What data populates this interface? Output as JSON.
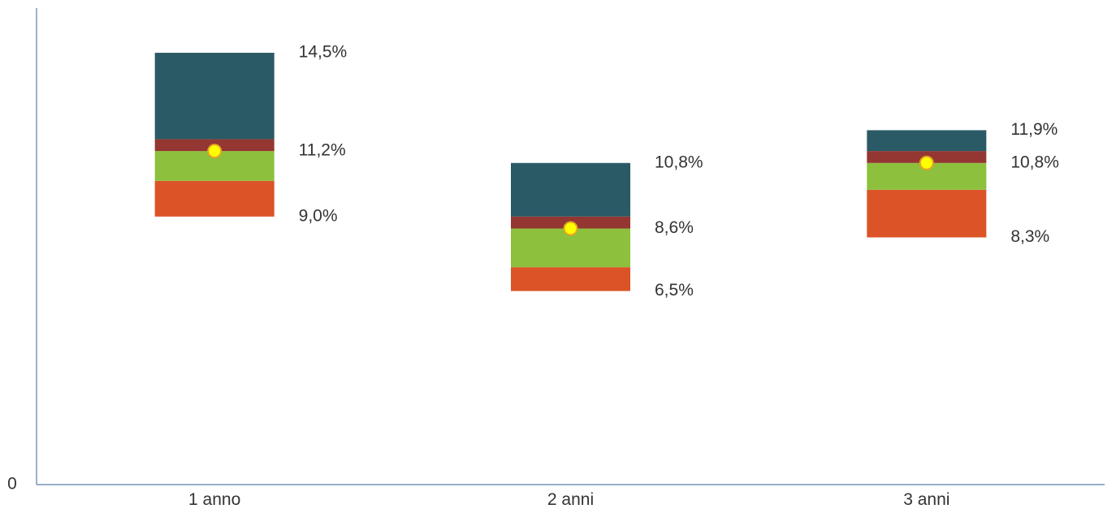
{
  "chart_data": {
    "type": "bar",
    "categories": [
      "1 anno",
      "2 anni",
      "3 anni"
    ],
    "ylim": [
      0,
      0.16
    ],
    "y_tick_labels": [
      "0"
    ],
    "series": [
      {
        "values": [
          0.09,
          0.065,
          0.083
        ],
        "color": "#db5326"
      },
      {
        "values": [
          0.102,
          0.073,
          0.099
        ],
        "color": "#8dc03d"
      },
      {
        "values": [
          0.112,
          0.086,
          0.108
        ],
        "color": "#943631"
      },
      {
        "values": [
          0.145,
          0.108,
          0.119
        ],
        "color": "#2a5a66"
      }
    ],
    "points": [
      0.112,
      0.086,
      0.108
    ],
    "point_color": "#ffff00",
    "point_edge_color": "#e2a623",
    "data_labels": [
      [
        "14,5%",
        "11,2%",
        "9,0%"
      ],
      [
        "10,8%",
        "8,6%",
        "6,5%"
      ],
      [
        "11,9%",
        "10,8%",
        "8,3%"
      ]
    ],
    "grid": false,
    "legend": "none",
    "xlabel": "",
    "ylabel": ""
  }
}
